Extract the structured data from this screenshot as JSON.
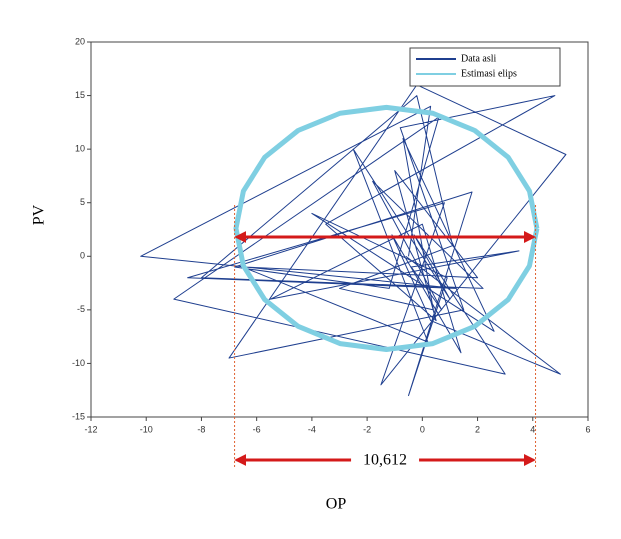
{
  "chart_data": {
    "type": "line",
    "x_label": "OP",
    "y_label": "PV",
    "xlim": [
      -12,
      6
    ],
    "ylim": [
      -15,
      20
    ],
    "xticks": [
      -12,
      -10,
      -8,
      -6,
      -4,
      -2,
      0,
      2,
      4,
      6
    ],
    "yticks": [
      -15,
      -10,
      -5,
      0,
      5,
      10,
      15,
      20
    ],
    "grid": false,
    "legend": "top-right",
    "series": [
      {
        "name": "Data asli",
        "color": "#1f3f8f",
        "x": [
          -0.5,
          0.3,
          -10.2,
          1.2,
          -8.5,
          0.8,
          -1.5,
          5.2,
          -0.2,
          -7.0,
          1.5,
          -0.8,
          4.8,
          -3.5,
          0.5,
          -1.0,
          2.0,
          -6.5,
          0.2,
          -2.5,
          1.0,
          -0.3,
          3.0,
          -9.0,
          0.6,
          -1.2,
          -6.8,
          1.8,
          -0.5,
          0.9,
          -4.0,
          2.6,
          -0.7,
          0.4,
          -3.0,
          1.1,
          -0.2,
          -8.0,
          2.2,
          -1.8,
          0.7,
          -0.4,
          3.5,
          -5.5,
          0.0,
          1.4,
          -1.1,
          0.3,
          5.0,
          -0.6
        ],
        "y": [
          0,
          14,
          0,
          -3,
          -2,
          5,
          -12,
          9.5,
          16,
          -9.5,
          -5,
          12,
          15,
          3,
          -6,
          8,
          -2,
          -1,
          -8,
          10,
          -4,
          2,
          -11,
          -4,
          13,
          -3,
          -1,
          6,
          -13,
          -2,
          4,
          -7,
          11,
          -5,
          -3,
          1,
          15,
          -2,
          -3,
          7,
          -5,
          -1,
          0.5,
          -4,
          3,
          -9,
          2,
          -6,
          -11,
          0
        ]
      },
      {
        "name": "Estimasi elips",
        "color": "#7fcfe2",
        "x": [
          4.15,
          3.88,
          3.11,
          1.9,
          0.38,
          -1.3,
          -2.98,
          -4.5,
          -5.71,
          -6.48,
          -6.75,
          -6.48,
          -5.71,
          -4.5,
          -2.98,
          -1.3,
          0.38,
          1.9,
          3.11,
          3.88,
          4.15
        ],
        "y": [
          2.6,
          6.09,
          9.24,
          11.74,
          13.35,
          13.9,
          13.35,
          11.74,
          9.24,
          6.09,
          2.6,
          -0.89,
          -4.04,
          -6.54,
          -8.15,
          -8.7,
          -8.15,
          -6.54,
          -4.04,
          -0.89,
          2.6
        ]
      }
    ],
    "span": [
      -6.8,
      4.1
    ],
    "span_y": 1.8,
    "span_label": "10,612"
  }
}
